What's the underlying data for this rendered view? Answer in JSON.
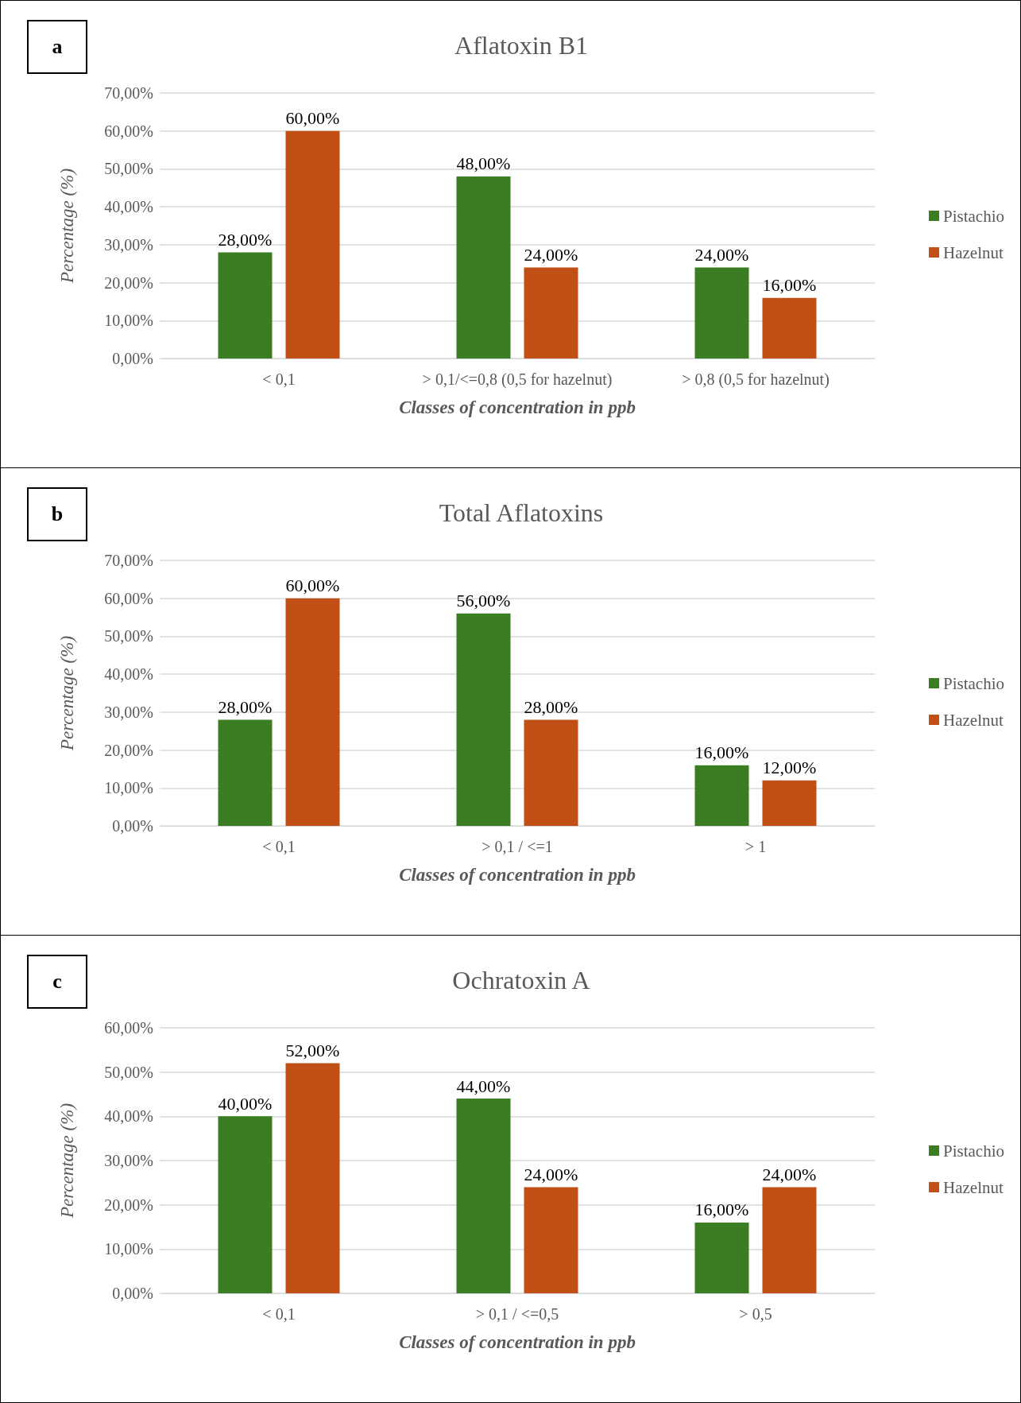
{
  "chart_data": [
    {
      "type": "bar",
      "title": "Aflatoxin B1",
      "xlabel": "Classes of concentration in ppb",
      "ylabel": "Percentage (%)",
      "annotations": [
        "a"
      ],
      "categories": [
        "< 0,1",
        "> 0,1/<=0,8 (0,5 for hazelnut)",
        "> 0,8 (0,5 for hazelnut)"
      ],
      "series": [
        {
          "name": "Pistachio",
          "color": "#3a7d22",
          "values": [
            28,
            48,
            24
          ],
          "value_labels": [
            "28,00%",
            "48,00%",
            "24,00%"
          ]
        },
        {
          "name": "Hazelnut",
          "color": "#c05016",
          "values": [
            60,
            24,
            16
          ],
          "value_labels": [
            "60,00%",
            "24,00%",
            "16,00%"
          ]
        }
      ],
      "ylim": [
        0,
        70
      ],
      "yticks": [
        {
          "value": 0,
          "label": "0,00%"
        },
        {
          "value": 10,
          "label": "10,00%"
        },
        {
          "value": 20,
          "label": "20,00%"
        },
        {
          "value": 30,
          "label": "30,00%"
        },
        {
          "value": 40,
          "label": "40,00%"
        },
        {
          "value": 50,
          "label": "50,00%"
        },
        {
          "value": 60,
          "label": "60,00%"
        },
        {
          "value": 70,
          "label": "70,00%"
        }
      ],
      "grid": "y",
      "legend": "right"
    },
    {
      "type": "bar",
      "title": "Total Aflatoxins",
      "xlabel": "Classes of concentration in ppb",
      "ylabel": "Percentage (%)",
      "annotations": [
        "b"
      ],
      "categories": [
        "< 0,1",
        "> 0,1 / <=1",
        "> 1"
      ],
      "series": [
        {
          "name": "Pistachio",
          "color": "#3a7d22",
          "values": [
            28,
            56,
            16
          ],
          "value_labels": [
            "28,00%",
            "56,00%",
            "16,00%"
          ]
        },
        {
          "name": "Hazelnut",
          "color": "#c05016",
          "values": [
            60,
            28,
            12
          ],
          "value_labels": [
            "60,00%",
            "28,00%",
            "12,00%"
          ]
        }
      ],
      "ylim": [
        0,
        70
      ],
      "yticks": [
        {
          "value": 0,
          "label": "0,00%"
        },
        {
          "value": 10,
          "label": "10,00%"
        },
        {
          "value": 20,
          "label": "20,00%"
        },
        {
          "value": 30,
          "label": "30,00%"
        },
        {
          "value": 40,
          "label": "40,00%"
        },
        {
          "value": 50,
          "label": "50,00%"
        },
        {
          "value": 60,
          "label": "60,00%"
        },
        {
          "value": 70,
          "label": "70,00%"
        }
      ],
      "grid": "y",
      "legend": "right"
    },
    {
      "type": "bar",
      "title": "Ochratoxin A",
      "xlabel": "Classes of concentration in ppb",
      "ylabel": "Percentage (%)",
      "annotations": [
        "c"
      ],
      "categories": [
        "< 0,1",
        "> 0,1 / <=0,5",
        "> 0,5"
      ],
      "series": [
        {
          "name": "Pistachio",
          "color": "#3a7d22",
          "values": [
            40,
            44,
            16
          ],
          "value_labels": [
            "40,00%",
            "44,00%",
            "16,00%"
          ]
        },
        {
          "name": "Hazelnut",
          "color": "#c05016",
          "values": [
            52,
            24,
            24
          ],
          "value_labels": [
            "52,00%",
            "24,00%",
            "24,00%"
          ]
        }
      ],
      "ylim": [
        0,
        60
      ],
      "yticks": [
        {
          "value": 0,
          "label": "0,00%"
        },
        {
          "value": 10,
          "label": "10,00%"
        },
        {
          "value": 20,
          "label": "20,00%"
        },
        {
          "value": 30,
          "label": "30,00%"
        },
        {
          "value": 40,
          "label": "40,00%"
        },
        {
          "value": 50,
          "label": "50,00%"
        },
        {
          "value": 60,
          "label": "60,00%"
        }
      ],
      "grid": "y",
      "legend": "right"
    }
  ]
}
